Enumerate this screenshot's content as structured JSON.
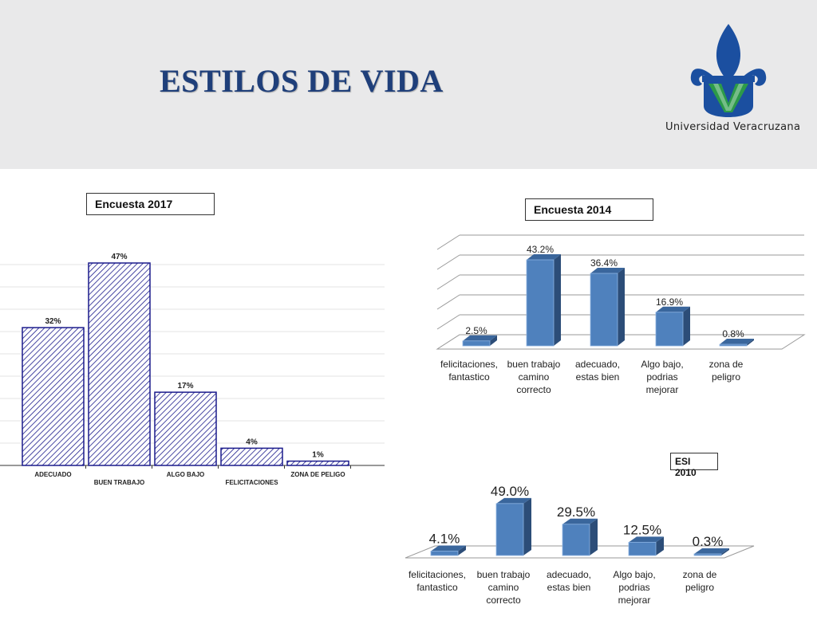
{
  "header": {
    "title": "ESTILOS DE VIDA",
    "logo_text": "Universidad Veracruzana",
    "logo_colors": {
      "blue": "#1b4fa0",
      "green": "#2c9a49"
    }
  },
  "colors": {
    "bar3d_front": "#4f81bd",
    "bar3d_top": "#3a669c",
    "bar3d_side": "#2c4d78",
    "hatch": "#1b1b8c"
  },
  "chart_data": [
    {
      "id": "encuesta-2017",
      "type": "bar",
      "title": "Encuesta  2017",
      "categories": [
        "ADECUADO",
        "BUEN TRABAJO",
        "ALGO BAJO",
        "FELICITACIONES",
        "ZONA DE PELIGO"
      ],
      "values": [
        32,
        47,
        17,
        4,
        1
      ],
      "value_labels": [
        "32%",
        "47%",
        "17%",
        "4%",
        "1%"
      ],
      "ylim": [
        0,
        47
      ],
      "grid": true,
      "style": "hatched"
    },
    {
      "id": "encuesta-2014",
      "type": "bar",
      "title": "Encuesta  2014",
      "categories": [
        "felicitaciones, fantastico",
        "buen trabajo camino correcto",
        "adecuado, estas bien",
        "Algo bajo, podrias mejorar",
        "zona de peligro"
      ],
      "category_lines": [
        [
          "felicitaciones,",
          "fantastico"
        ],
        [
          "buen trabajo",
          "camino",
          "correcto"
        ],
        [
          "adecuado,",
          "estas bien"
        ],
        [
          "Algo bajo,",
          "podrias",
          "mejorar"
        ],
        [
          "zona de",
          "peligro"
        ]
      ],
      "values": [
        2.5,
        43.2,
        36.4,
        16.9,
        0.8
      ],
      "value_labels": [
        "2.5%",
        "43.2%",
        "36.4%",
        "16.9%",
        "0.8%"
      ],
      "ylim": [
        0,
        50
      ],
      "grid": true,
      "style": "3d"
    },
    {
      "id": "esi-2010",
      "type": "bar",
      "title": "ESI 2010",
      "categories": [
        "felicitaciones, fantastico",
        "buen trabajo camino correcto",
        "adecuado, estas bien",
        "Algo bajo, podrias mejorar",
        "zona de peligro"
      ],
      "category_lines": [
        [
          "felicitaciones,",
          "fantastico"
        ],
        [
          "buen trabajo",
          "camino",
          "correcto"
        ],
        [
          "adecuado,",
          "estas bien"
        ],
        [
          "Algo bajo,",
          "podrias",
          "mejorar"
        ],
        [
          "zona de",
          "peligro"
        ]
      ],
      "values": [
        4.1,
        49.0,
        29.5,
        12.5,
        0.3
      ],
      "value_labels": [
        "4.1%",
        "49.0%",
        "29.5%",
        "12.5%",
        "0.3%"
      ],
      "ylim": [
        0,
        50
      ],
      "grid": false,
      "style": "3d"
    }
  ]
}
